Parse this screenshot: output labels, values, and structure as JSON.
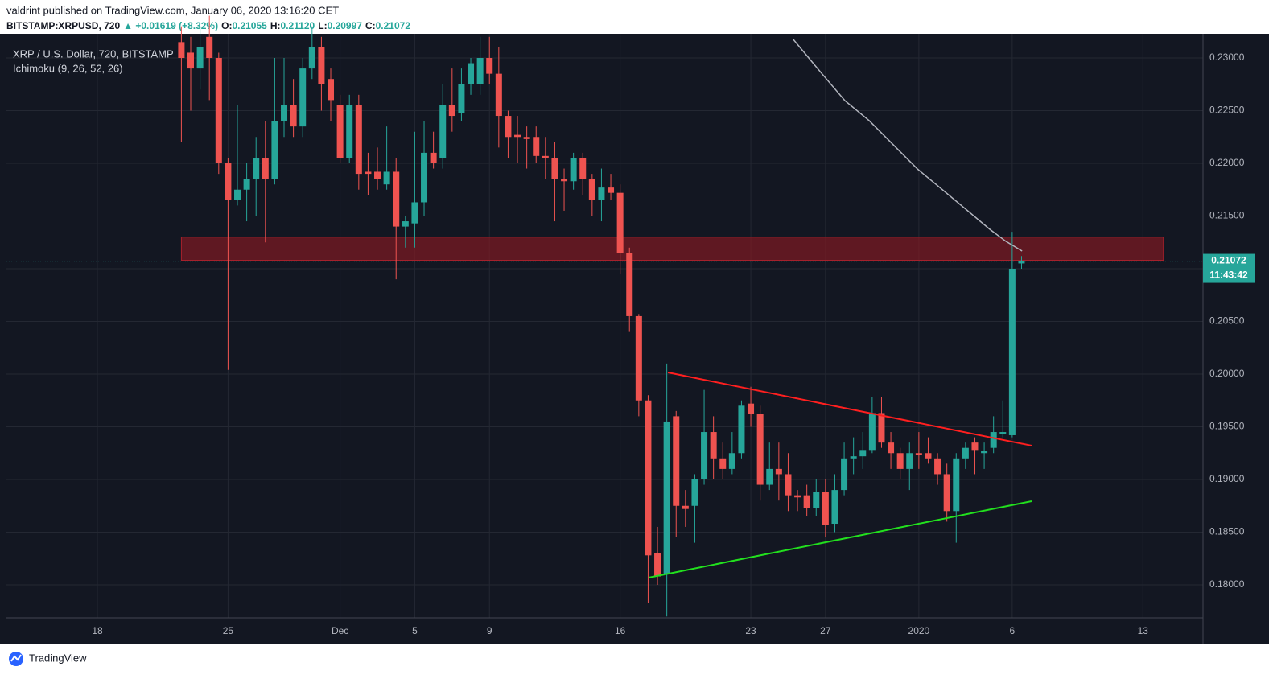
{
  "chart_data": {
    "type": "candlestick",
    "header": "valdrint published on TradingView.com, January 06, 2020 13:16:20 CET",
    "symbol": "BITSTAMP:XRPUSD, 720",
    "change": "▲ +0.01619 (+8.32%)",
    "ohlc": [
      {
        "label": "O:",
        "value": "0.21055"
      },
      {
        "label": "H:",
        "value": "0.21120"
      },
      {
        "label": "L:",
        "value": "0.20997"
      },
      {
        "label": "C:",
        "value": "0.21072"
      }
    ],
    "title": "XRP / U.S. Dollar, 720, BITSTAMP",
    "indicator": "Ichimoku (9, 26, 52, 26)",
    "footer": "TradingView",
    "last_price": {
      "value": 0.21072,
      "label": "0.21072"
    },
    "countdown": "11:43:42",
    "up_color": "#26a69a",
    "down_color": "#ef5350",
    "xlim": [
      -4.87,
      59.22
    ],
    "xticks": [
      {
        "value": 0,
        "label": "18"
      },
      {
        "value": 7,
        "label": "25"
      },
      {
        "value": 13,
        "label": "Dec"
      },
      {
        "value": 17,
        "label": "5"
      },
      {
        "value": 21,
        "label": "9"
      },
      {
        "value": 28,
        "label": "16"
      },
      {
        "value": 35,
        "label": "23"
      },
      {
        "value": 39,
        "label": "27"
      },
      {
        "value": 44,
        "label": "2020"
      },
      {
        "value": 49,
        "label": "6"
      },
      {
        "value": 56,
        "label": "13"
      }
    ],
    "ylim": [
      0.17687,
      0.23229
    ],
    "yticks": [
      {
        "value": 0.18,
        "label": "0.18000"
      },
      {
        "value": 0.185,
        "label": "0.18500"
      },
      {
        "value": 0.19,
        "label": "0.19000"
      },
      {
        "value": 0.195,
        "label": "0.19500"
      },
      {
        "value": 0.2,
        "label": "0.20000"
      },
      {
        "value": 0.205,
        "label": "0.20500"
      },
      {
        "value": 0.21,
        "label": "0.21000"
      },
      {
        "value": 0.215,
        "label": "0.21500"
      },
      {
        "value": 0.22,
        "label": "0.22000"
      },
      {
        "value": 0.225,
        "label": "0.22500"
      },
      {
        "value": 0.23,
        "label": "0.23000"
      }
    ],
    "grid": true,
    "x": [
      4.5,
      5,
      5.5,
      6,
      6.5,
      7,
      7.5,
      8,
      8.5,
      9,
      9.5,
      10,
      10.5,
      11,
      11.5,
      12,
      12.5,
      13,
      13.5,
      14,
      14.5,
      15,
      15.5,
      16,
      16.5,
      17,
      17.5,
      18,
      18.5,
      19,
      19.5,
      20,
      20.5,
      21,
      21.5,
      22,
      22.5,
      23,
      23.5,
      24,
      24.5,
      25,
      25.5,
      26,
      26.5,
      27,
      27.5,
      28,
      28.5,
      29,
      29.5,
      30,
      30.5,
      31,
      31.5,
      32,
      32.5,
      33,
      33.5,
      34,
      34.5,
      35,
      35.5,
      36,
      36.5,
      37,
      37.5,
      38,
      38.5,
      39,
      39.5,
      40,
      40.5,
      41,
      41.5,
      42,
      42.5,
      43,
      43.5,
      44,
      44.5,
      45,
      45.5,
      46,
      46.5,
      47,
      47.5,
      48,
      48.5,
      49,
      49.5
    ],
    "open": [
      0.2315,
      0.2305,
      0.229,
      0.232,
      0.23,
      0.22,
      0.2165,
      0.2175,
      0.2185,
      0.2205,
      0.2185,
      0.224,
      0.2255,
      0.2235,
      0.229,
      0.231,
      0.228,
      0.2255,
      0.2205,
      0.2255,
      0.2192,
      0.2192,
      0.218,
      0.2192,
      0.214,
      0.2143,
      0.2163,
      0.221,
      0.2205,
      0.2255,
      0.2248,
      0.2275,
      0.2275,
      0.23,
      0.2285,
      0.2245,
      0.2227,
      0.2225,
      0.2225,
      0.2207,
      0.2205,
      0.2185,
      0.2183,
      0.2205,
      0.2185,
      0.2165,
      0.2177,
      0.2172,
      0.2115,
      0.2055,
      0.1975,
      0.183,
      0.181,
      0.196,
      0.1875,
      0.1875,
      0.19,
      0.1945,
      0.192,
      0.191,
      0.1925,
      0.1972,
      0.1962,
      0.1895,
      0.191,
      0.1905,
      0.1885,
      0.1885,
      0.1873,
      0.1888,
      0.1858,
      0.189,
      0.192,
      0.1922,
      0.1928,
      0.1963,
      0.1935,
      0.1925,
      0.191,
      0.1925,
      0.1925,
      0.192,
      0.1905,
      0.187,
      0.192,
      0.1935,
      0.1925,
      0.193,
      0.1943,
      0.1942,
      0.2105
    ],
    "high": [
      0.233,
      0.232,
      0.233,
      0.234,
      0.2305,
      0.2205,
      0.2255,
      0.22,
      0.2225,
      0.224,
      0.23,
      0.23,
      0.228,
      0.23,
      0.233,
      0.232,
      0.229,
      0.2265,
      0.2265,
      0.2265,
      0.221,
      0.2215,
      0.2235,
      0.2205,
      0.215,
      0.223,
      0.224,
      0.223,
      0.2275,
      0.229,
      0.229,
      0.23,
      0.232,
      0.232,
      0.231,
      0.225,
      0.2245,
      0.2235,
      0.2235,
      0.2225,
      0.222,
      0.2195,
      0.221,
      0.221,
      0.219,
      0.2195,
      0.219,
      0.218,
      0.212,
      0.2057,
      0.198,
      0.1855,
      0.201,
      0.1965,
      0.189,
      0.1905,
      0.1985,
      0.196,
      0.1935,
      0.1945,
      0.1975,
      0.1988,
      0.197,
      0.1935,
      0.1935,
      0.1925,
      0.189,
      0.1895,
      0.19,
      0.19,
      0.1905,
      0.1935,
      0.194,
      0.1945,
      0.1978,
      0.1978,
      0.1945,
      0.193,
      0.1935,
      0.1945,
      0.194,
      0.1925,
      0.1915,
      0.1925,
      0.1935,
      0.194,
      0.1935,
      0.196,
      0.1975,
      0.2135,
      0.2112
    ],
    "low": [
      0.222,
      0.225,
      0.227,
      0.226,
      0.219,
      0.2004,
      0.216,
      0.2145,
      0.215,
      0.2125,
      0.218,
      0.2225,
      0.2225,
      0.2225,
      0.228,
      0.225,
      0.224,
      0.22,
      0.22,
      0.2175,
      0.217,
      0.2175,
      0.2175,
      0.209,
      0.212,
      0.212,
      0.215,
      0.2195,
      0.2195,
      0.223,
      0.224,
      0.2265,
      0.2265,
      0.2275,
      0.2215,
      0.2205,
      0.22,
      0.2195,
      0.22,
      0.2185,
      0.2145,
      0.2155,
      0.2175,
      0.217,
      0.215,
      0.2145,
      0.2165,
      0.2095,
      0.204,
      0.196,
      0.1783,
      0.18,
      0.177,
      0.1845,
      0.1855,
      0.184,
      0.1895,
      0.19,
      0.19,
      0.1905,
      0.192,
      0.195,
      0.188,
      0.189,
      0.188,
      0.187,
      0.187,
      0.1865,
      0.1865,
      0.1845,
      0.185,
      0.1885,
      0.1905,
      0.191,
      0.1925,
      0.193,
      0.191,
      0.19,
      0.189,
      0.191,
      0.1915,
      0.1895,
      0.186,
      0.184,
      0.191,
      0.1905,
      0.191,
      0.1925,
      0.194,
      0.194,
      0.21
    ],
    "close": [
      0.23,
      0.229,
      0.231,
      0.23,
      0.22,
      0.2165,
      0.2175,
      0.2185,
      0.2205,
      0.2185,
      0.224,
      0.2255,
      0.2235,
      0.229,
      0.231,
      0.2275,
      0.226,
      0.2205,
      0.2255,
      0.219,
      0.219,
      0.2185,
      0.2192,
      0.214,
      0.2145,
      0.2163,
      0.221,
      0.22,
      0.2255,
      0.2245,
      0.2275,
      0.2295,
      0.23,
      0.2285,
      0.2245,
      0.2225,
      0.2225,
      0.2223,
      0.2207,
      0.2205,
      0.2185,
      0.2183,
      0.2205,
      0.2185,
      0.2165,
      0.2177,
      0.2172,
      0.2115,
      0.2055,
      0.1975,
      0.1828,
      0.1808,
      0.1955,
      0.1875,
      0.1872,
      0.19,
      0.1945,
      0.192,
      0.191,
      0.1925,
      0.197,
      0.1962,
      0.1895,
      0.191,
      0.1905,
      0.1885,
      0.1883,
      0.1873,
      0.1888,
      0.1857,
      0.189,
      0.192,
      0.1922,
      0.1928,
      0.1963,
      0.1935,
      0.1925,
      0.191,
      0.1925,
      0.1923,
      0.192,
      0.1905,
      0.187,
      0.192,
      0.193,
      0.1928,
      0.1927,
      0.1945,
      0.1945,
      0.21,
      0.2107
    ],
    "moving_average": {
      "color": "#b2b5be",
      "x": [
        37.24,
        38.75,
        40.04,
        41.34,
        42.63,
        43.92,
        45.22,
        46.51,
        47.8,
        48.66,
        49.53
      ],
      "values": [
        0.23183,
        0.22863,
        0.22595,
        0.22405,
        0.22176,
        0.21947,
        0.21756,
        0.21565,
        0.21374,
        0.2126,
        0.21168
      ]
    },
    "zone": {
      "color": "#801922",
      "x": [
        4.5,
        57.1
      ],
      "values": [
        0.2108,
        0.213
      ]
    },
    "trendlines": [
      {
        "color": "#ff1f1f",
        "x": [
          30.56,
          50.04
        ],
        "values": [
          0.20015,
          0.19321
        ]
      },
      {
        "color": "#22e01e",
        "x": [
          29.53,
          50.04
        ],
        "values": [
          0.18069,
          0.18794
        ]
      }
    ]
  }
}
